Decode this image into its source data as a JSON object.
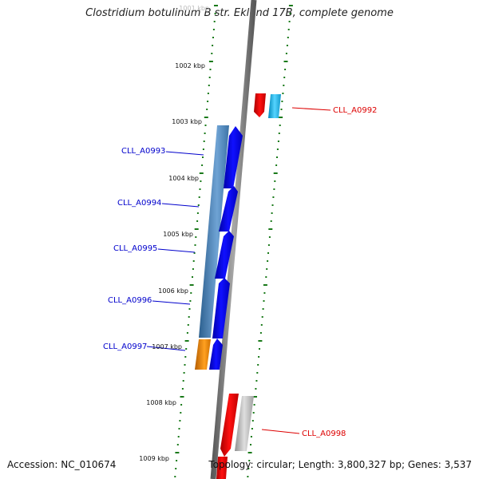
{
  "title": "Clostridium botulinum B str. Eklund 17B, complete genome",
  "accession_label": "Accession: NC_010674",
  "summary_label": "Topology: circular; Length: 3,800,327 bp; Genes: 3,537",
  "ticks": [
    "1001 kbp",
    "1002 kbp",
    "1003 kbp",
    "1004 kbp",
    "1005 kbp",
    "1006 kbp",
    "1007 kbp",
    "1008 kbp",
    "1009 kbp"
  ],
  "genes": [
    {
      "name": "CLL_A0992",
      "strand": "reverse",
      "color": "#dd0000"
    },
    {
      "name": "CLL_A0993",
      "strand": "forward",
      "color": "#0000cc"
    },
    {
      "name": "CLL_A0994",
      "strand": "forward",
      "color": "#0000cc"
    },
    {
      "name": "CLL_A0995",
      "strand": "forward",
      "color": "#0000cc"
    },
    {
      "name": "CLL_A0996",
      "strand": "forward",
      "color": "#0000cc"
    },
    {
      "name": "CLL_A0997",
      "strand": "forward",
      "color": "#0000cc"
    },
    {
      "name": "CLL_A0998",
      "strand": "reverse",
      "color": "#dd0000"
    }
  ],
  "colors": {
    "backbone": "#8a8a8a",
    "forward_cds": "#0000ee",
    "reverse_cds": "#ee0000",
    "forward_feature": "#4a84b8",
    "reverse_feature_cyan": "#22bbee",
    "reverse_feature_gray": "#b8b8b8",
    "orange_feature": "#f08a00",
    "gc_dots": "#1a7a1a",
    "forward_label": "#0000cc",
    "reverse_label": "#dd0000"
  }
}
